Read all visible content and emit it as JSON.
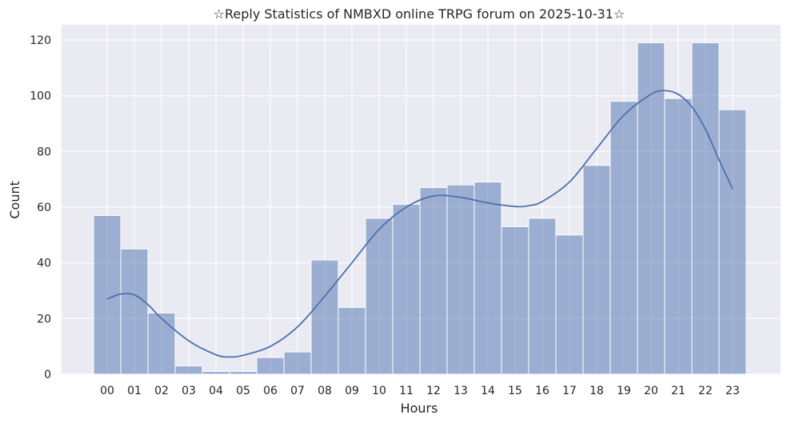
{
  "chart_data": {
    "type": "bar",
    "title": "☆Reply Statistics of NMBXD online TRPG forum on 2025-10-31☆",
    "xlabel": "Hours",
    "ylabel": "Count",
    "categories": [
      "00",
      "01",
      "02",
      "03",
      "04",
      "05",
      "06",
      "07",
      "08",
      "09",
      "10",
      "11",
      "12",
      "13",
      "14",
      "15",
      "16",
      "17",
      "18",
      "19",
      "20",
      "21",
      "22",
      "23"
    ],
    "values": [
      57,
      45,
      22,
      3,
      1,
      1,
      6,
      8,
      41,
      24,
      56,
      61,
      67,
      68,
      69,
      53,
      56,
      50,
      75,
      98,
      119,
      99,
      119,
      95
    ],
    "yticks": [
      0,
      20,
      40,
      60,
      80,
      100,
      120
    ],
    "ylim": [
      0,
      125
    ],
    "grid": true,
    "kde": {
      "x": [
        0.0,
        0.5,
        1.0,
        1.5,
        2.0,
        3.0,
        4.0,
        4.5,
        5.0,
        6.0,
        7.0,
        8.0,
        9.0,
        10.0,
        11.0,
        12.0,
        13.0,
        14.0,
        15.0,
        15.5,
        16.0,
        17.0,
        18.0,
        19.0,
        20.0,
        20.5,
        21.0,
        21.5,
        22.0,
        22.5,
        23.0
      ],
      "y": [
        27,
        28.8,
        28.5,
        25,
        20,
        12,
        7,
        6.2,
        6.8,
        10,
        17,
        28,
        40,
        52,
        60,
        64,
        63.5,
        61.5,
        60.2,
        60.5,
        62,
        69,
        81,
        93,
        100.5,
        101.8,
        100.5,
        96,
        88,
        77,
        66.5
      ]
    },
    "colors": {
      "bar": "#4c72b0",
      "line": "#4c72b0",
      "background": "#eaeaf2",
      "grid": "#ffffff"
    }
  }
}
